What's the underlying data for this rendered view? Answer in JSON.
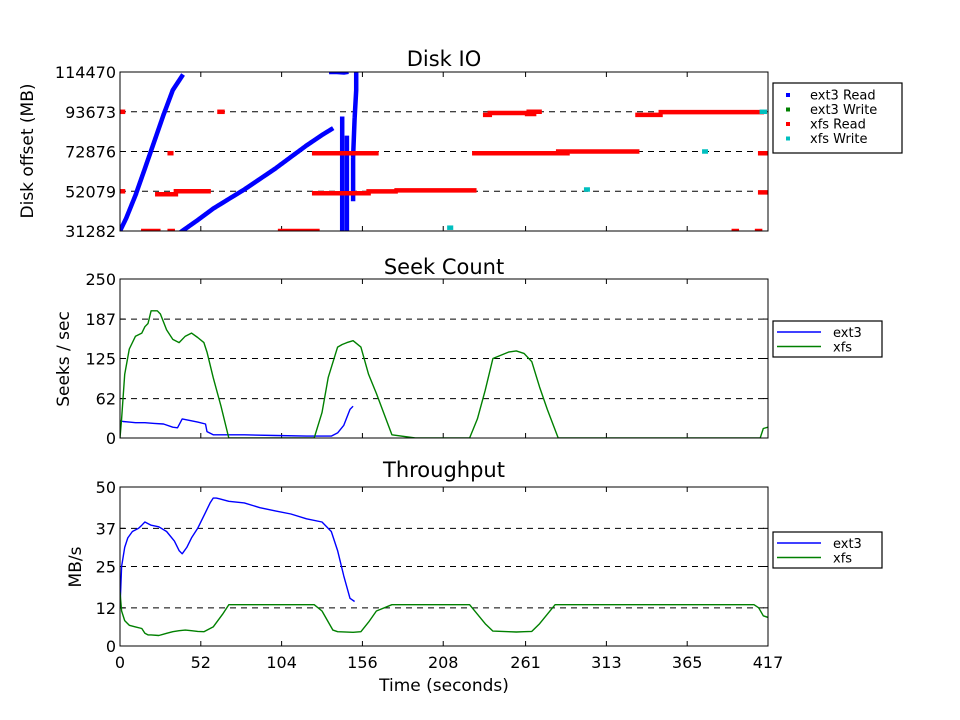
{
  "x_axis": {
    "label": "Time (seconds)",
    "ticks": [
      0,
      52,
      104,
      156,
      208,
      261,
      313,
      365,
      417
    ],
    "range": [
      0,
      417
    ]
  },
  "colors": {
    "ext3_read": "#0000ff",
    "ext3_write": "#008000",
    "xfs_read": "#ff0000",
    "xfs_write": "#00bfbf",
    "ext3_line": "#0000ff",
    "xfs_line": "#008000"
  },
  "chart_data": [
    {
      "type": "scatter",
      "title": "Disk IO",
      "ylabel": "Disk offset (MB)",
      "xlim": [
        0,
        417
      ],
      "ylim": [
        31282,
        114470
      ],
      "yticks": [
        31282,
        52079,
        72876,
        93673,
        114470
      ],
      "grid": "dashed horizontal",
      "legend": {
        "placement": "right",
        "entries": [
          "ext3 Read",
          "ext3 Write",
          "xfs Read",
          "xfs Write"
        ]
      },
      "series": [
        {
          "name": "ext3 Read",
          "segments": [
            {
              "x": [
                0,
                4,
                10,
                16,
                22,
                28,
                34,
                40
              ],
              "y": [
                31282,
                38000,
                50000,
                64000,
                78000,
                92000,
                105000,
                112500
              ]
            },
            {
              "x": [
                40,
                50,
                60,
                70,
                80,
                90,
                100,
                110,
                120,
                130,
                136
              ],
              "y": [
                31282,
                37000,
                43000,
                48000,
                53000,
                58500,
                64000,
                70000,
                76000,
                81500,
                84500
              ]
            },
            {
              "x": [
                136,
                140,
                144,
                146
              ],
              "y": [
                114470,
                114470,
                114200,
                114470
              ]
            },
            {
              "x": [
                143,
                143,
                143,
                143
              ],
              "y": [
                31282,
                55000,
                80000,
                90000
              ]
            },
            {
              "x": [
                146,
                146,
                146
              ],
              "y": [
                31282,
                60000,
                80000
              ]
            },
            {
              "x": [
                150,
                150,
                151,
                152,
                152
              ],
              "y": [
                48000,
                70000,
                90000,
                105000,
                114470
              ]
            }
          ]
        },
        {
          "name": "ext3 Write",
          "segments": []
        },
        {
          "name": "xfs Read",
          "segments": [
            {
              "x": [
                0,
                2
              ],
              "y": [
                93673,
                93673
              ]
            },
            {
              "x": [
                0,
                2
              ],
              "y": [
                52079,
                52079
              ]
            },
            {
              "x": [
                15,
                25
              ],
              "y": [
                31282,
                31282
              ]
            },
            {
              "x": [
                24,
                36
              ],
              "y": [
                50500,
                50500
              ]
            },
            {
              "x": [
                36,
                57
              ],
              "y": [
                52079,
                52079
              ]
            },
            {
              "x": [
                32,
                34
              ],
              "y": [
                31282,
                31282
              ]
            },
            {
              "x": [
                64,
                66
              ],
              "y": [
                93673,
                93673
              ]
            },
            {
              "x": [
                32,
                33
              ],
              "y": [
                72000,
                72000
              ]
            },
            {
              "x": [
                103,
                127
              ],
              "y": [
                31282,
                31282
              ]
            },
            {
              "x": [
                125,
                165
              ],
              "y": [
                72000,
                72000
              ]
            },
            {
              "x": [
                125,
                160
              ],
              "y": [
                51000,
                51000
              ]
            },
            {
              "x": [
                160,
                178
              ],
              "y": [
                52000,
                52000
              ]
            },
            {
              "x": [
                178,
                228
              ],
              "y": [
                52500,
                52500
              ]
            },
            {
              "x": [
                228,
                288
              ],
              "y": [
                72000,
                72000
              ]
            },
            {
              "x": [
                235,
                238
              ],
              "y": [
                92000,
                92000
              ]
            },
            {
              "x": [
                238,
                263
              ],
              "y": [
                93000,
                93000
              ]
            },
            {
              "x": [
                263,
                270
              ],
              "y": [
                93673,
                93673
              ]
            },
            {
              "x": [
                262,
                267
              ],
              "y": [
                92500,
                92500
              ]
            },
            {
              "x": [
                282,
                333
              ],
              "y": [
                72876,
                72876
              ]
            },
            {
              "x": [
                333,
                348
              ],
              "y": [
                92000,
                92000
              ]
            },
            {
              "x": [
                348,
                413
              ],
              "y": [
                93500,
                93500
              ]
            },
            {
              "x": [
                412,
                417
              ],
              "y": [
                72000,
                72000
              ]
            },
            {
              "x": [
                412,
                417
              ],
              "y": [
                51500,
                51500
              ]
            },
            {
              "x": [
                395,
                397
              ],
              "y": [
                31282,
                31282
              ]
            },
            {
              "x": [
                410,
                412
              ],
              "y": [
                31282,
                31282
              ]
            }
          ]
        },
        {
          "name": "xfs Write",
          "segments": [
            {
              "x": [
                300,
                301
              ],
              "y": [
                53000,
                53000
              ]
            },
            {
              "x": [
                376,
                377
              ],
              "y": [
                72876,
                72876
              ]
            },
            {
              "x": [
                212,
                213
              ],
              "y": [
                33000,
                33000
              ]
            },
            {
              "x": [
                413,
                415
              ],
              "y": [
                93673,
                93673
              ]
            }
          ]
        }
      ]
    },
    {
      "type": "line",
      "title": "Seek Count",
      "ylabel": "Seeks / sec",
      "xlim": [
        0,
        417
      ],
      "ylim": [
        0,
        250
      ],
      "yticks": [
        0,
        62,
        125,
        187,
        250
      ],
      "grid": "dashed horizontal",
      "legend": {
        "placement": "right",
        "entries": [
          "ext3",
          "xfs"
        ]
      },
      "series": [
        {
          "name": "ext3",
          "x": [
            0,
            2,
            6,
            10,
            16,
            22,
            28,
            34,
            37,
            40,
            44,
            50,
            55,
            56,
            60,
            70,
            80,
            100,
            120,
            130,
            136,
            140,
            144,
            148,
            150
          ],
          "y": [
            27,
            26,
            25,
            24,
            24,
            23,
            22,
            17,
            16,
            30,
            28,
            25,
            22,
            10,
            5,
            5,
            5,
            4,
            3,
            3,
            3,
            8,
            20,
            45,
            50
          ]
        },
        {
          "name": "xfs",
          "x": [
            0,
            1,
            3,
            6,
            10,
            14,
            16,
            18,
            20,
            24,
            26,
            30,
            34,
            38,
            42,
            46,
            50,
            54,
            56,
            60,
            65,
            70,
            80,
            100,
            120,
            125,
            130,
            134,
            140,
            143,
            146,
            150,
            155,
            160,
            165,
            175,
            190,
            200,
            215,
            225,
            230,
            235,
            240,
            250,
            255,
            260,
            265,
            270,
            275,
            282,
            300,
            350,
            412,
            414,
            417
          ],
          "y": [
            0,
            30,
            100,
            140,
            160,
            165,
            175,
            180,
            200,
            200,
            195,
            170,
            155,
            150,
            160,
            165,
            158,
            150,
            135,
            95,
            50,
            0,
            0,
            0,
            0,
            0,
            40,
            95,
            143,
            147,
            150,
            153,
            143,
            100,
            70,
            5,
            0,
            0,
            0,
            0,
            30,
            75,
            125,
            135,
            137,
            133,
            120,
            80,
            45,
            0,
            0,
            0,
            0,
            15,
            17
          ]
        }
      ]
    },
    {
      "type": "line",
      "title": "Throughput",
      "ylabel": "MB/s",
      "xlim": [
        0,
        417
      ],
      "ylim": [
        0,
        50
      ],
      "yticks": [
        0,
        12,
        25,
        37,
        50
      ],
      "grid": "dashed horizontal",
      "legend": {
        "placement": "right",
        "entries": [
          "ext3",
          "xfs"
        ]
      },
      "series": [
        {
          "name": "ext3",
          "x": [
            0,
            1,
            3,
            5,
            8,
            12,
            14,
            16,
            18,
            20,
            25,
            30,
            35,
            38,
            40,
            43,
            46,
            50,
            55,
            58,
            60,
            62,
            64,
            70,
            80,
            90,
            100,
            110,
            120,
            130,
            136,
            140,
            144,
            148,
            151
          ],
          "y": [
            12,
            25,
            31,
            34,
            36,
            37,
            38,
            39,
            38.5,
            38,
            37.5,
            36,
            33,
            30,
            29,
            31,
            34,
            37,
            42,
            45,
            46.5,
            46.5,
            46.3,
            45.5,
            45,
            43.5,
            42.5,
            41.5,
            40,
            39,
            36,
            30,
            22,
            15,
            14
          ]
        },
        {
          "name": "xfs",
          "x": [
            0,
            1,
            3,
            6,
            10,
            14,
            16,
            18,
            20,
            25,
            30,
            34,
            38,
            42,
            46,
            50,
            54,
            56,
            60,
            66,
            70,
            80,
            100,
            120,
            125,
            130,
            137,
            140,
            150,
            155,
            160,
            165,
            175,
            190,
            200,
            225,
            230,
            235,
            240,
            250,
            255,
            260,
            265,
            270,
            280,
            290,
            300,
            350,
            408,
            411,
            414,
            417
          ],
          "y": [
            17,
            11,
            8,
            6.5,
            6,
            5.5,
            4,
            3.5,
            3.5,
            3.3,
            4,
            4.5,
            4.8,
            5,
            4.8,
            4.6,
            4.5,
            5,
            6,
            10,
            13,
            13,
            13,
            13,
            13,
            11,
            5,
            4.5,
            4.3,
            4.5,
            7.5,
            11,
            13,
            13,
            13,
            13,
            10,
            7,
            4.7,
            4.5,
            4.4,
            4.5,
            4.6,
            7,
            13,
            13,
            13,
            13,
            13,
            12,
            9.5,
            9
          ]
        }
      ]
    }
  ]
}
